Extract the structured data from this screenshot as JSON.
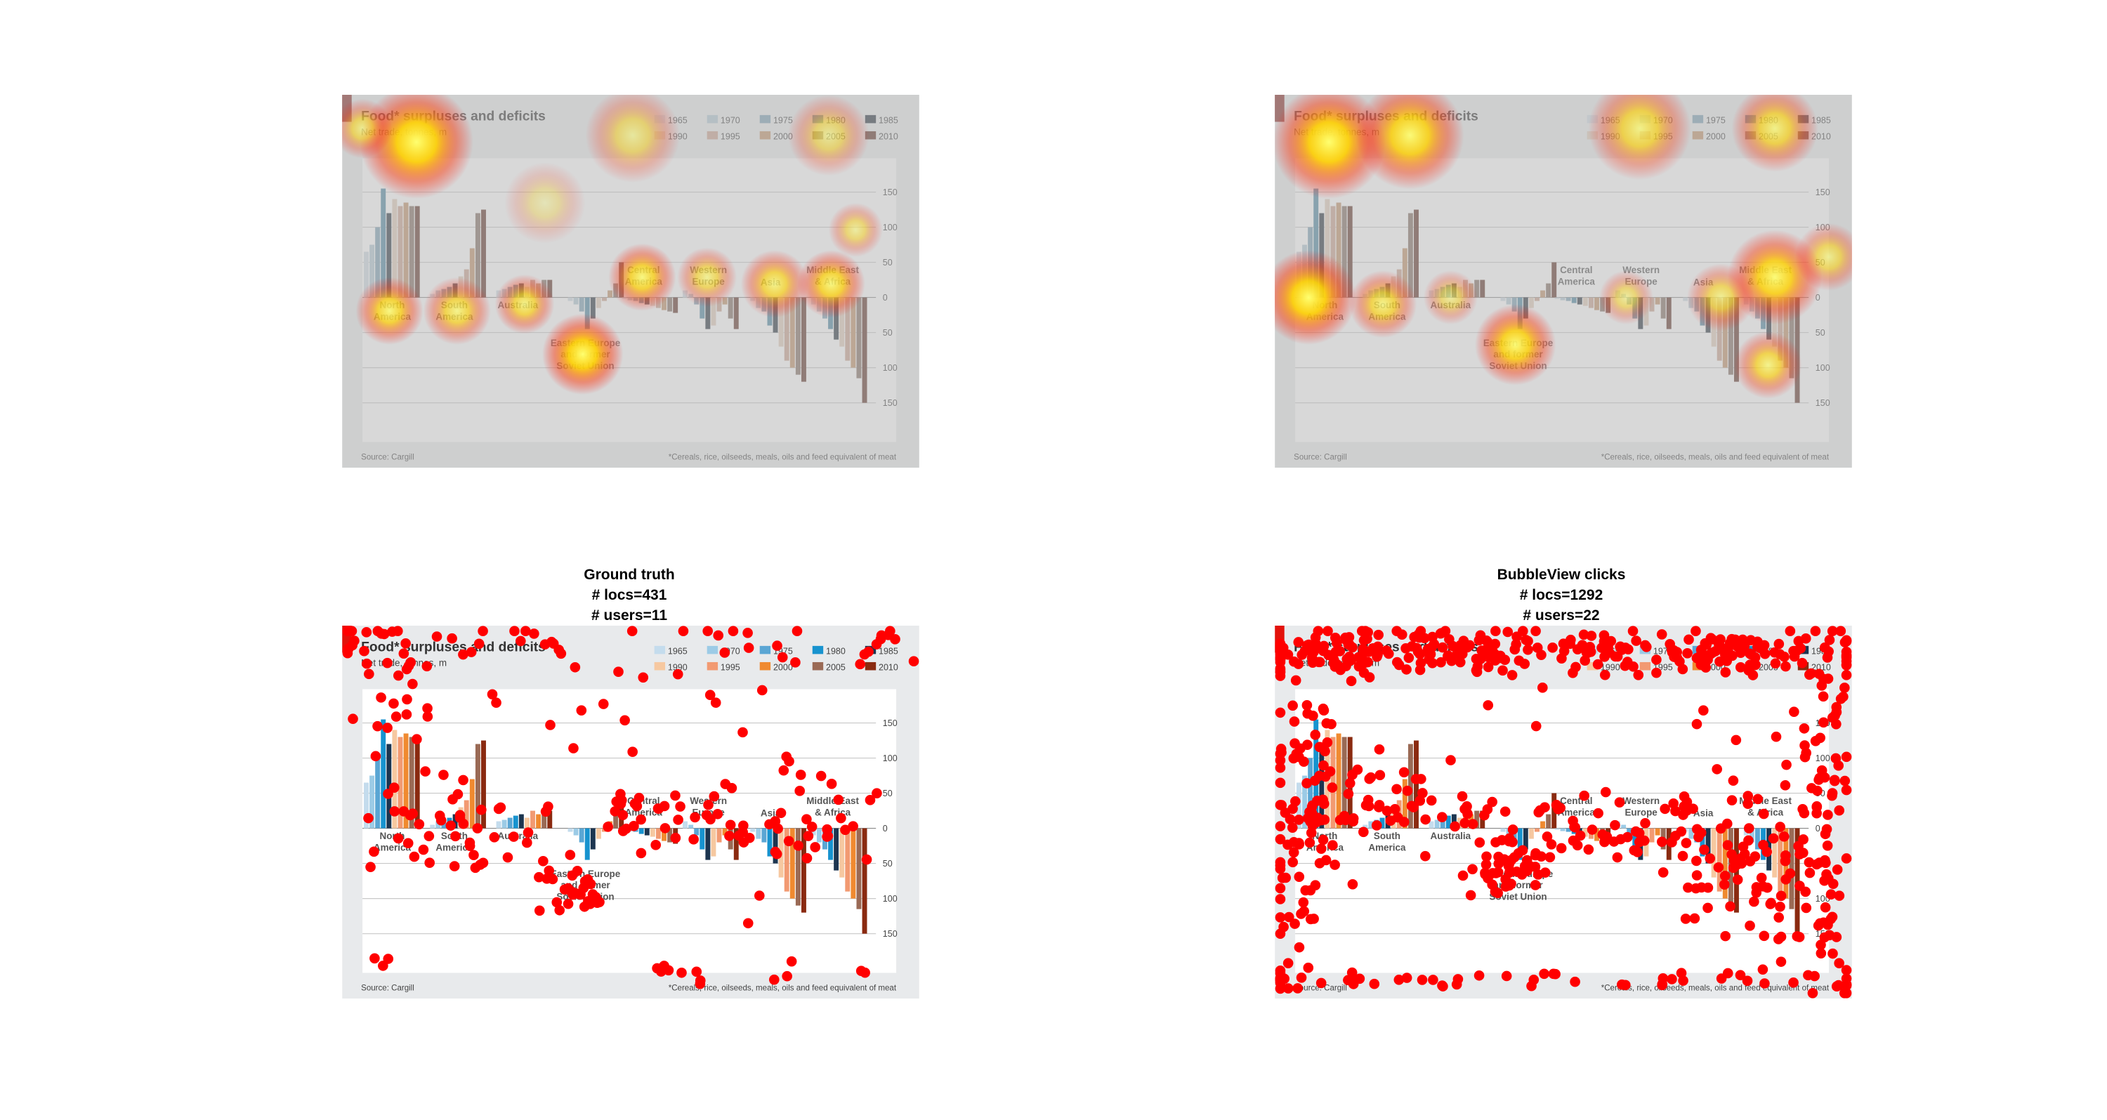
{
  "panels": {
    "ground_truth": {
      "title": "Ground truth",
      "locs": "# locs=431",
      "users": "# users=11"
    },
    "bubbleview": {
      "title": "BubbleView clicks",
      "locs": "# locs=1292",
      "users": "# users=22"
    }
  },
  "chart": {
    "title": "Food* surpluses and deficits",
    "subtitle": "Net trade, tonnes, m",
    "legend": [
      "1965",
      "1970",
      "1975",
      "1980",
      "1985",
      "1990",
      "1995",
      "2000",
      "2005",
      "2010"
    ],
    "colors": [
      "#c4dced",
      "#9ccbe6",
      "#5aa6d4",
      "#1793cf",
      "#1c3550",
      "#f6c8a0",
      "#f29a72",
      "#f08a30",
      "#9a6a55",
      "#8a2a10"
    ],
    "regions": [
      {
        "label": [
          "North",
          "America"
        ],
        "values": [
          65,
          75,
          100,
          155,
          120,
          140,
          130,
          135,
          130,
          130
        ]
      },
      {
        "label": [
          "South",
          "America"
        ],
        "values": [
          5,
          10,
          12,
          15,
          20,
          30,
          40,
          70,
          120,
          125
        ]
      },
      {
        "label": [
          "Australia"
        ],
        "values": [
          10,
          12,
          15,
          18,
          20,
          15,
          25,
          20,
          25,
          25
        ]
      },
      {
        "label": [
          "Eastern Europe",
          "and former",
          "Soviet Union"
        ],
        "values": [
          -5,
          -10,
          -20,
          -45,
          -30,
          -15,
          -5,
          10,
          20,
          50
        ]
      },
      {
        "label": [
          "Central",
          "America"
        ],
        "values": [
          -2,
          -4,
          -5,
          -8,
          -10,
          -12,
          -15,
          -18,
          -20,
          -22
        ]
      },
      {
        "label": [
          "Western",
          "Europe"
        ],
        "values": [
          10,
          5,
          -10,
          -30,
          -45,
          -40,
          -20,
          -10,
          -30,
          -45
        ]
      },
      {
        "label": [
          "Asia"
        ],
        "values": [
          -5,
          -15,
          -20,
          -40,
          -50,
          -70,
          -90,
          -100,
          -110,
          -120
        ]
      },
      {
        "label": [
          "Middle East",
          "& Africa"
        ],
        "values": [
          -10,
          -20,
          -30,
          -45,
          -60,
          -70,
          -90,
          -100,
          -115,
          -150
        ]
      }
    ],
    "yticks": [
      150,
      100,
      50,
      0,
      {
        "value": -50,
        "label": "50"
      },
      {
        "value": -100,
        "label": "100"
      },
      {
        "value": -150,
        "label": "150"
      }
    ],
    "source": "Source: Cargill",
    "footnote": "*Cereals, rice, oilseeds, meals, oils and feed equivalent of meat"
  }
}
